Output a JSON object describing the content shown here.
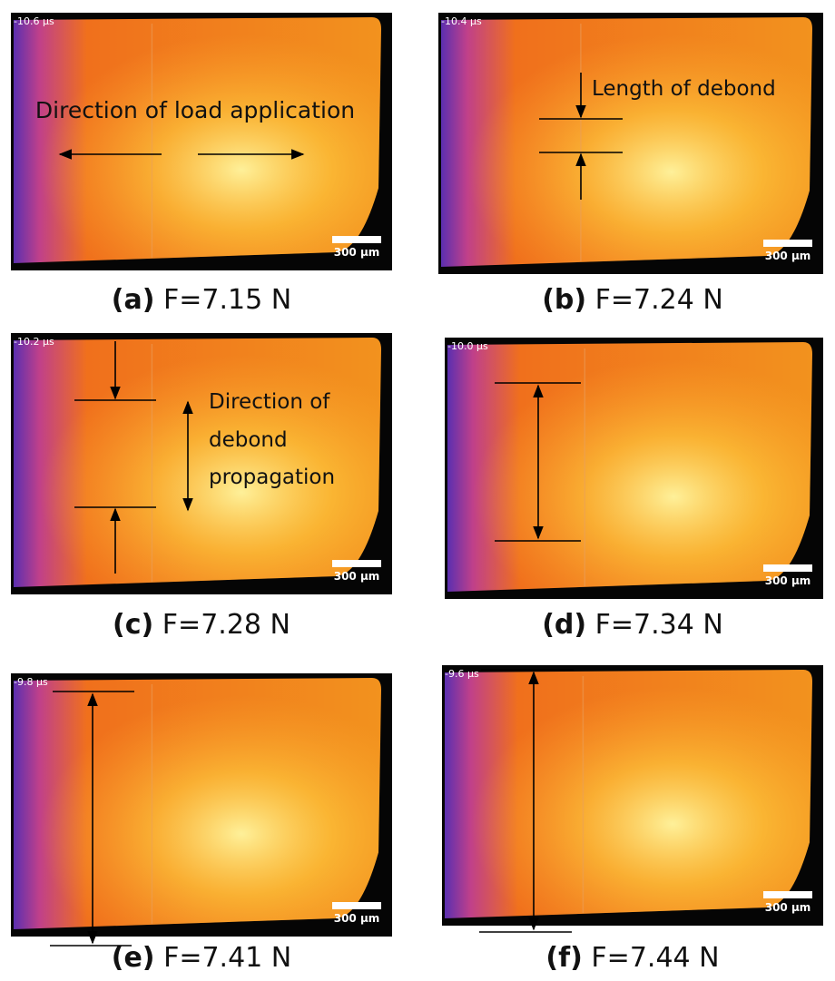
{
  "panels": [
    {
      "timestamp": "-10.6 µs",
      "scale": "300 µm",
      "letter": "(a)",
      "caption": "F=7.15 N",
      "annotations": [
        "Direction of load application"
      ]
    },
    {
      "timestamp": "-10.4 µs",
      "scale": "300 µm",
      "letter": "(b)",
      "caption": "F=7.24 N",
      "annotations": [
        "Length of debond"
      ]
    },
    {
      "timestamp": "-10.2 µs",
      "scale": "300 µm",
      "letter": "(c)",
      "caption": "F=7.28 N",
      "annotations": [
        "Direction of",
        "debond",
        "propagation"
      ]
    },
    {
      "timestamp": "-10.0 µs",
      "scale": "300 µm",
      "letter": "(d)",
      "caption": "F=7.34 N",
      "annotations": []
    },
    {
      "timestamp": "-9.8 µs",
      "scale": "300 µm",
      "letter": "(e)",
      "caption": "F=7.41 N",
      "annotations": []
    },
    {
      "timestamp": "-9.6 µs",
      "scale": "300 µm",
      "letter": "(f)",
      "caption": "F=7.44 N",
      "annotations": []
    }
  ]
}
